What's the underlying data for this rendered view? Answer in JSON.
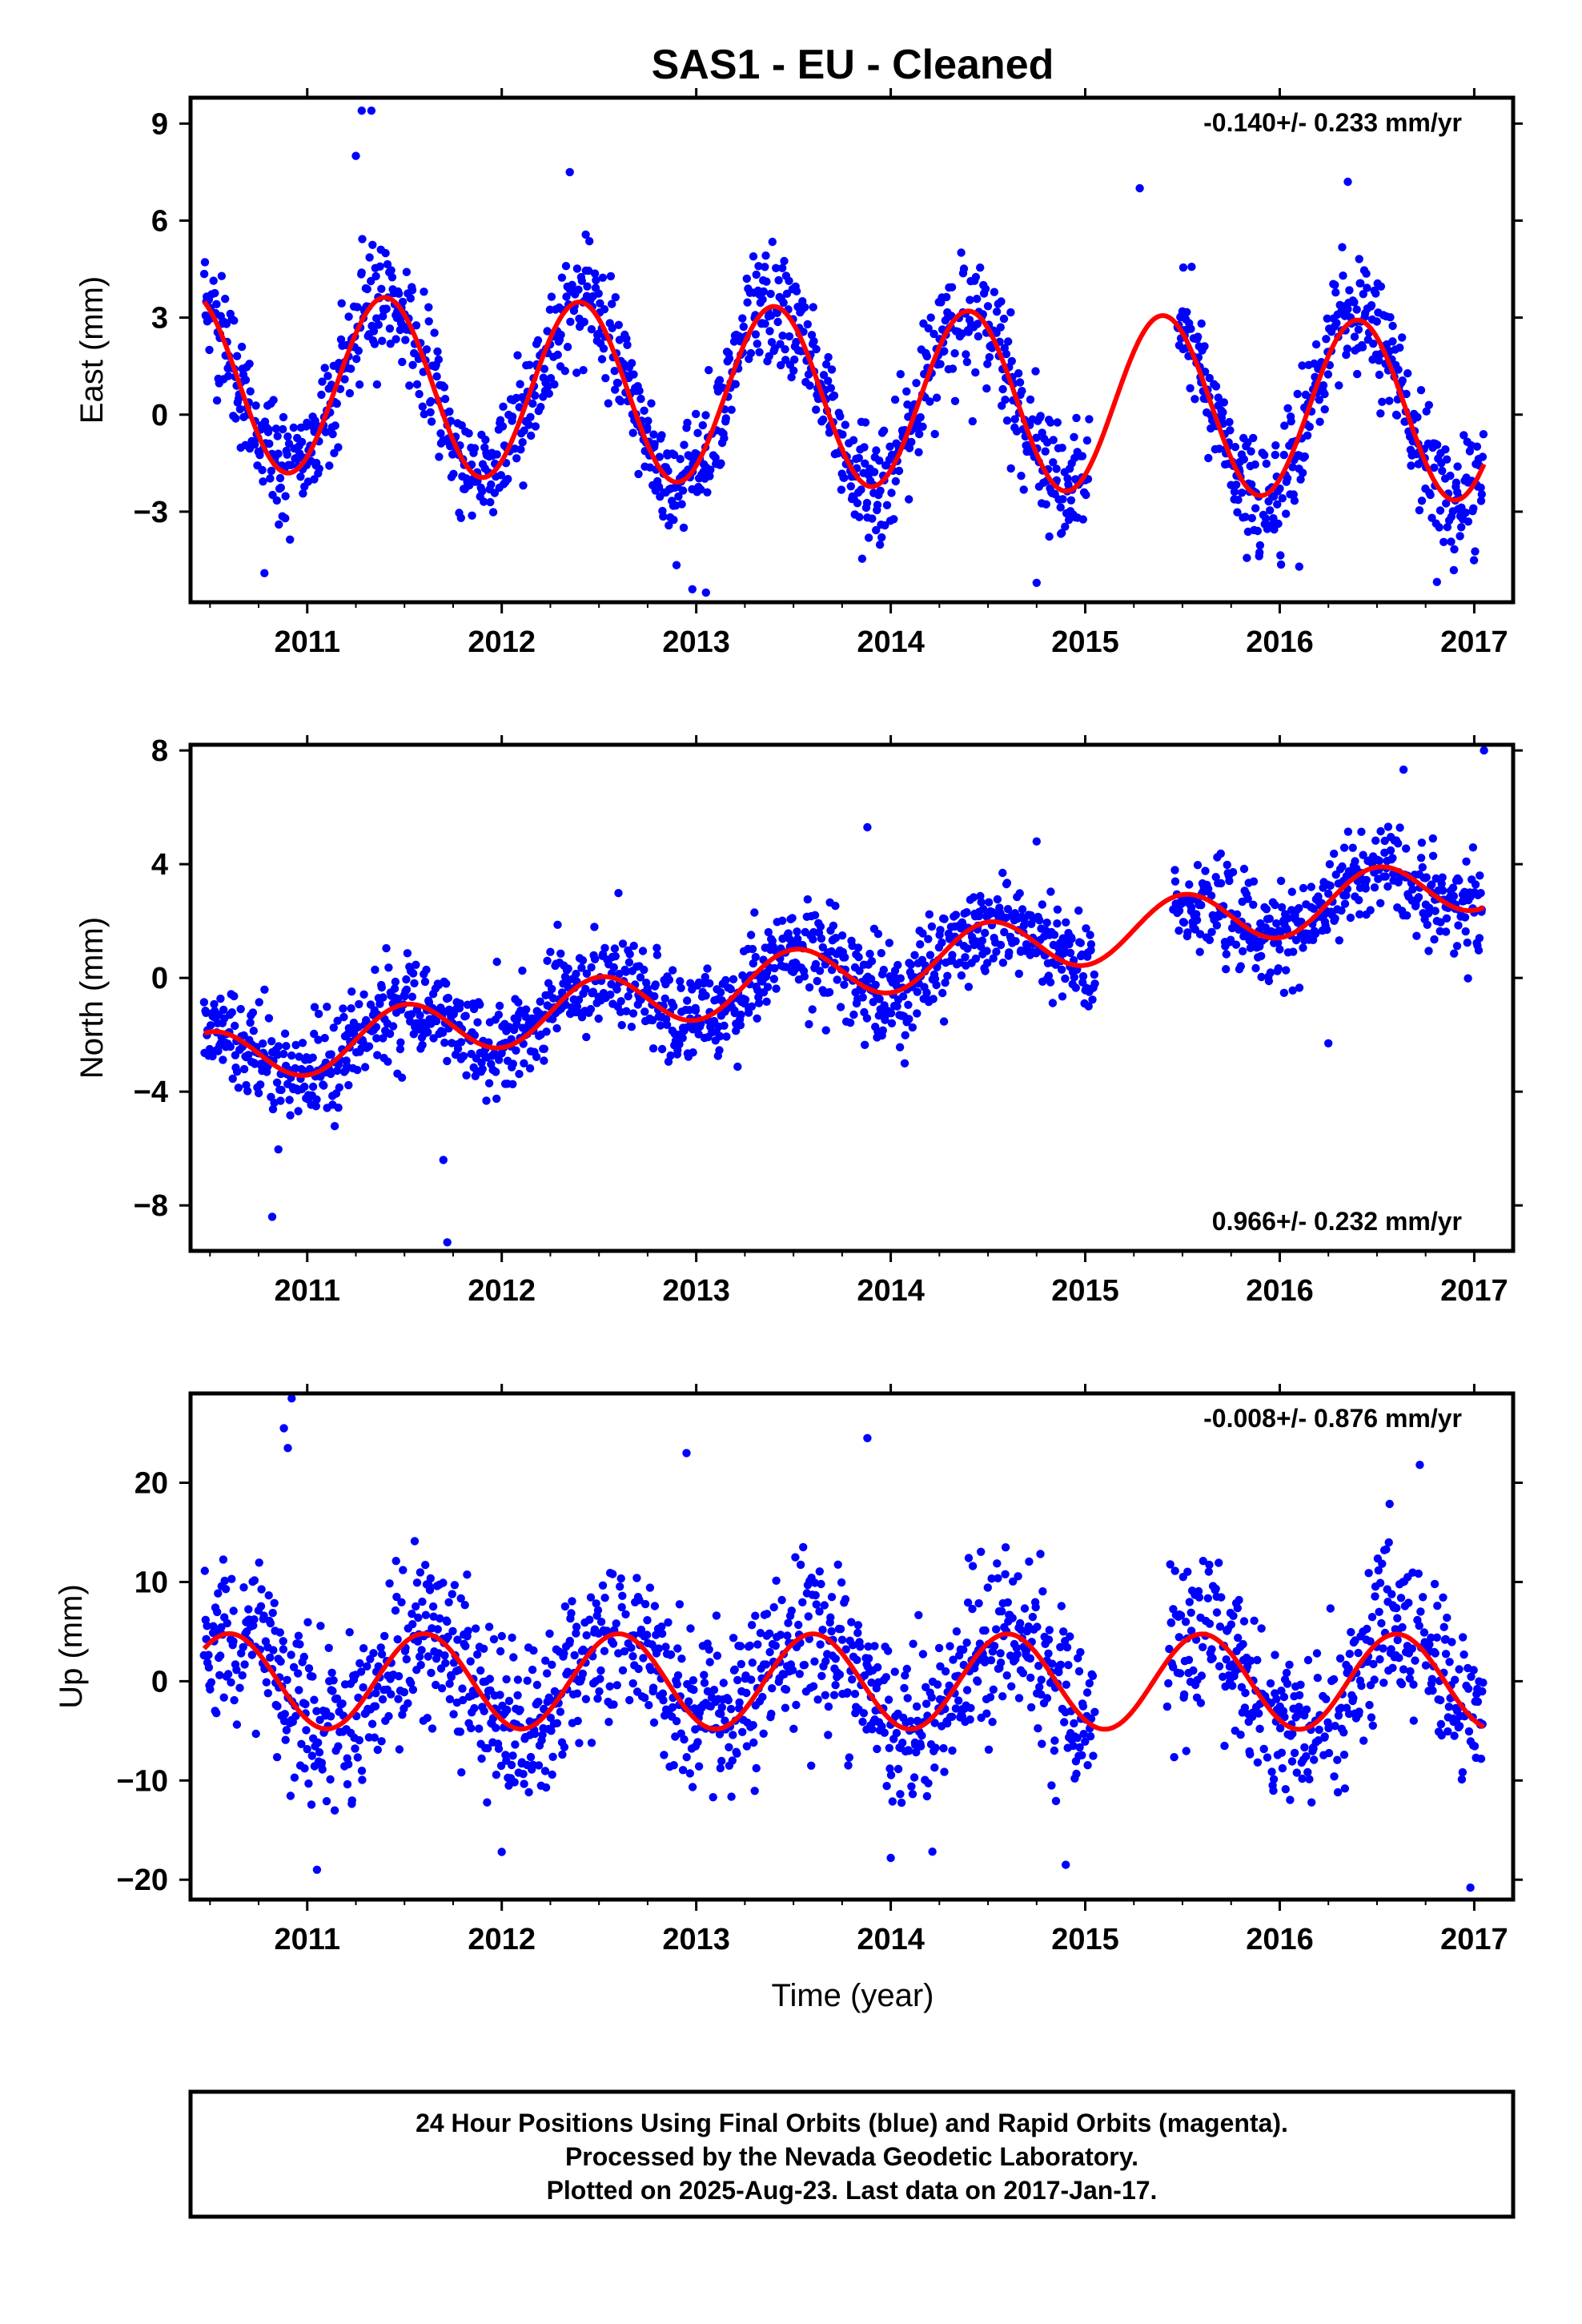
{
  "title": "SAS1  - EU - Cleaned",
  "xlabel": "Time (year)",
  "footer": [
    "24 Hour Positions Using Final Orbits (blue) and Rapid Orbits (magenta).",
    "Processed by the Nevada Geodetic Laboratory.",
    "Plotted on 2025-Aug-23. Last data on 2017-Jan-17."
  ],
  "colors": {
    "points": "#0000ff",
    "fit": "#ff0000",
    "frame": "#000000"
  },
  "chart_data": [
    {
      "type": "scatter",
      "ylabel": "East (mm)",
      "rate": "-0.140+/- 0.233 mm/yr",
      "rate_position": "top-right",
      "xlim": [
        2010.4,
        2017.2
      ],
      "ylim": [
        -5.8,
        9.8
      ],
      "xticks": [
        2011,
        2012,
        2013,
        2014,
        2015,
        2016,
        2017
      ],
      "yticks": [
        -3,
        0,
        3,
        6,
        9
      ],
      "grid": false,
      "fit": {
        "trend_mm_per_yr": -0.14,
        "offset": 1.0,
        "annual_amp": 2.75,
        "annual_peak": 2010.4
      },
      "points_summary": {
        "time_range": [
          2010.47,
          2017.05
        ],
        "noise_mm": 0.9,
        "gaps": [
          [
            2015.02,
            2015.47
          ]
        ]
      },
      "outliers": [
        [
          2011.28,
          9.4
        ],
        [
          2011.33,
          9.4
        ],
        [
          2011.25,
          8.0
        ],
        [
          2012.35,
          7.5
        ],
        [
          2015.28,
          7.0
        ],
        [
          2016.35,
          7.2
        ],
        [
          2010.78,
          -4.9
        ],
        [
          2012.98,
          -5.4
        ],
        [
          2013.05,
          -5.5
        ],
        [
          2014.75,
          -5.2
        ],
        [
          2016.1,
          -4.7
        ]
      ]
    },
    {
      "type": "scatter",
      "ylabel": "North (mm)",
      "rate": "0.966+/- 0.232 mm/yr",
      "rate_position": "bottom-right",
      "xlim": [
        2010.4,
        2017.2
      ],
      "ylim": [
        -9.6,
        8.2
      ],
      "xticks": [
        2011,
        2012,
        2013,
        2014,
        2015,
        2016,
        2017
      ],
      "yticks": [
        -8,
        -4,
        0,
        4,
        8
      ],
      "grid": false,
      "fit": {
        "trend_mm_per_yr": 0.966,
        "offset": -2.9,
        "annual_amp": 1.0,
        "annual_peak": 2010.5
      },
      "points_summary": {
        "time_range": [
          2010.47,
          2017.05
        ],
        "noise_mm": 0.85,
        "gaps": [
          [
            2015.05,
            2015.45
          ]
        ]
      },
      "outliers": [
        [
          2010.82,
          -8.4
        ],
        [
          2011.72,
          -9.3
        ],
        [
          2011.7,
          -6.4
        ],
        [
          2013.88,
          5.3
        ],
        [
          2014.75,
          4.8
        ],
        [
          2017.05,
          8.0
        ],
        [
          2016.25,
          -2.3
        ]
      ]
    },
    {
      "type": "scatter",
      "ylabel": "Up (mm)",
      "rate": "-0.008+/- 0.876 mm/yr",
      "rate_position": "top-right",
      "xlim": [
        2010.4,
        2017.2
      ],
      "ylim": [
        -22,
        29
      ],
      "xticks": [
        2011,
        2012,
        2013,
        2014,
        2015,
        2016,
        2017
      ],
      "yticks": [
        -20,
        -10,
        0,
        10,
        20
      ],
      "grid": false,
      "fit": {
        "trend_mm_per_yr": -0.008,
        "offset": 0.0,
        "annual_amp": 4.8,
        "annual_peak": 2010.6
      },
      "points_summary": {
        "time_range": [
          2010.47,
          2017.05
        ],
        "noise_mm": 4.0,
        "gaps": [
          [
            2015.05,
            2015.42
          ]
        ]
      },
      "outliers": [
        [
          2010.92,
          28.5
        ],
        [
          2010.88,
          25.5
        ],
        [
          2010.9,
          23.5
        ],
        [
          2012.95,
          23.0
        ],
        [
          2013.88,
          24.5
        ],
        [
          2016.72,
          21.8
        ],
        [
          2011.05,
          -19.0
        ],
        [
          2016.98,
          -20.8
        ],
        [
          2014.0,
          -17.8
        ],
        [
          2014.9,
          -18.5
        ],
        [
          2012.0,
          -17.2
        ]
      ]
    }
  ]
}
